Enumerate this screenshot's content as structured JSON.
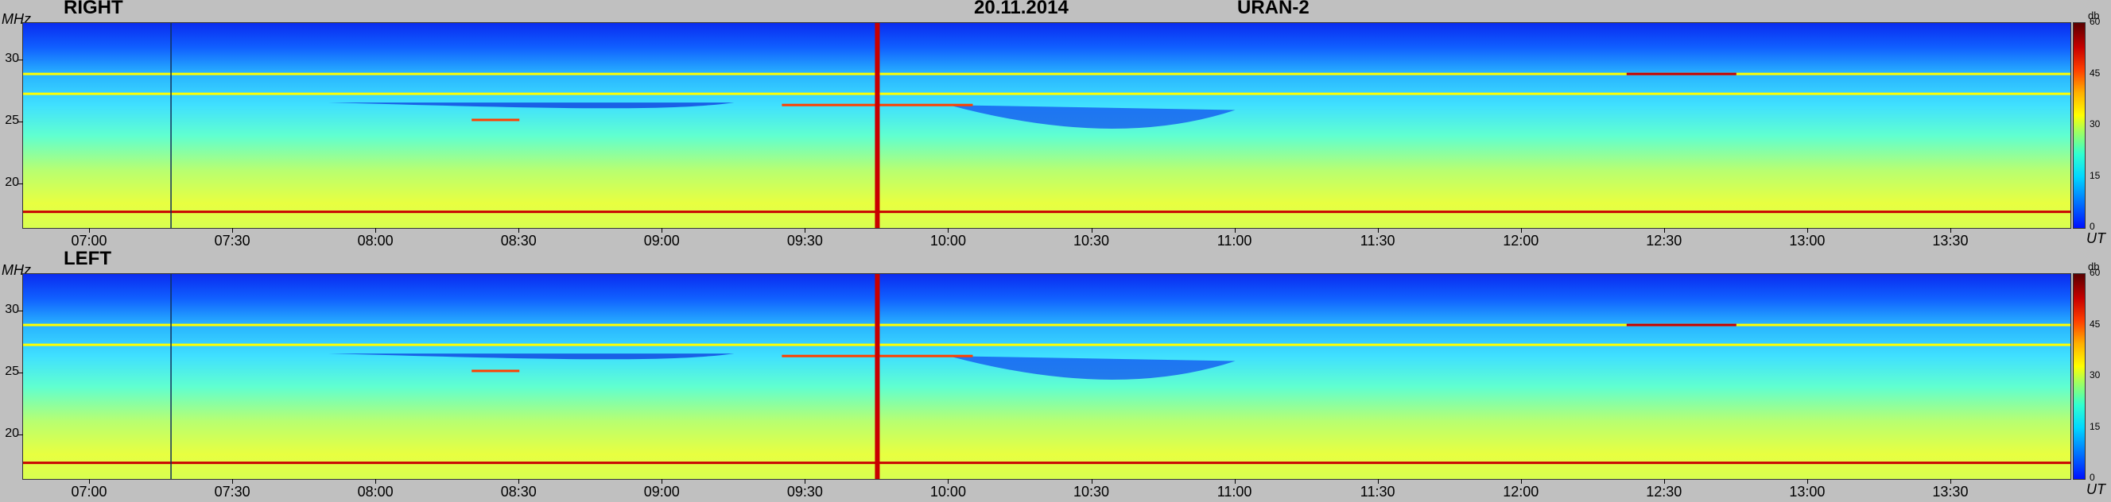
{
  "header": {
    "date": "20.11.2014",
    "instrument": "URAN-2"
  },
  "panels": [
    {
      "title": "RIGHT",
      "frequency_unit": "MHz",
      "time_unit": "UT"
    },
    {
      "title": "LEFT",
      "frequency_unit": "MHz",
      "time_unit": "UT"
    }
  ],
  "colorbar": {
    "unit": "db",
    "ticks": [
      "0",
      "15",
      "30",
      "45",
      "60"
    ],
    "range": [
      0,
      60
    ],
    "colors": [
      "#0010ff",
      "#0070ff",
      "#00d8ff",
      "#30ffd0",
      "#a0ff60",
      "#ffff00",
      "#ffb000",
      "#ff4000",
      "#c80000",
      "#5a0000"
    ]
  },
  "chart_data": [
    {
      "type": "heatmap",
      "title": "RIGHT",
      "xlabel": "UT",
      "ylabel": "MHz",
      "x_ticks": [
        "07:00",
        "07:30",
        "08:00",
        "08:30",
        "09:00",
        "09:30",
        "10:00",
        "10:30",
        "11:00",
        "11:30",
        "12:00",
        "12:30",
        "13:00",
        "13:30"
      ],
      "y_ticks": [
        "20",
        "25",
        "30"
      ],
      "x_range": [
        "06:46",
        "13:55"
      ],
      "y_range": [
        16.5,
        33
      ],
      "colorbar_range_db": [
        0,
        60
      ],
      "features": [
        {
          "kind": "narrowband-line",
          "freq_mhz": 17.8,
          "from": "06:46",
          "to": "13:55",
          "level_db": 55
        },
        {
          "kind": "narrowband-line",
          "freq_mhz": 27.3,
          "from": "06:46",
          "to": "13:55",
          "level_db": 35
        },
        {
          "kind": "narrowband-line",
          "freq_mhz": 28.9,
          "from": "06:46",
          "to": "13:55",
          "level_db": 30
        },
        {
          "kind": "narrowband-line",
          "freq_mhz": 26.4,
          "from": "09:25",
          "to": "10:05",
          "level_db": 48
        },
        {
          "kind": "narrowband-line",
          "freq_mhz": 25.2,
          "from": "08:20",
          "to": "08:30",
          "level_db": 45
        },
        {
          "kind": "narrowband-line",
          "freq_mhz": 28.9,
          "from": "12:22",
          "to": "12:45",
          "level_db": 50
        },
        {
          "kind": "broadband-burst",
          "time": "09:45",
          "freq_range_mhz": [
            16.5,
            33
          ],
          "level_db": 55
        },
        {
          "kind": "marker-line",
          "time": "07:17"
        }
      ]
    },
    {
      "type": "heatmap",
      "title": "LEFT",
      "xlabel": "UT",
      "ylabel": "MHz",
      "x_ticks": [
        "07:00",
        "07:30",
        "08:00",
        "08:30",
        "09:00",
        "09:30",
        "10:00",
        "10:30",
        "11:00",
        "11:30",
        "12:00",
        "12:30",
        "13:00",
        "13:30"
      ],
      "y_ticks": [
        "20",
        "25",
        "30"
      ],
      "x_range": [
        "06:46",
        "13:55"
      ],
      "y_range": [
        16.5,
        33
      ],
      "colorbar_range_db": [
        0,
        60
      ],
      "features": [
        {
          "kind": "narrowband-line",
          "freq_mhz": 17.8,
          "from": "06:46",
          "to": "13:55",
          "level_db": 55
        },
        {
          "kind": "narrowband-line",
          "freq_mhz": 27.3,
          "from": "06:46",
          "to": "13:55",
          "level_db": 35
        },
        {
          "kind": "narrowband-line",
          "freq_mhz": 28.9,
          "from": "06:46",
          "to": "13:55",
          "level_db": 30
        },
        {
          "kind": "narrowband-line",
          "freq_mhz": 26.4,
          "from": "09:25",
          "to": "10:05",
          "level_db": 48
        },
        {
          "kind": "narrowband-line",
          "freq_mhz": 25.2,
          "from": "08:20",
          "to": "08:30",
          "level_db": 45
        },
        {
          "kind": "narrowband-line",
          "freq_mhz": 28.9,
          "from": "12:22",
          "to": "12:45",
          "level_db": 50
        },
        {
          "kind": "broadband-burst",
          "time": "09:45",
          "freq_range_mhz": [
            16.5,
            33
          ],
          "level_db": 55
        },
        {
          "kind": "marker-line",
          "time": "07:17"
        }
      ]
    }
  ]
}
